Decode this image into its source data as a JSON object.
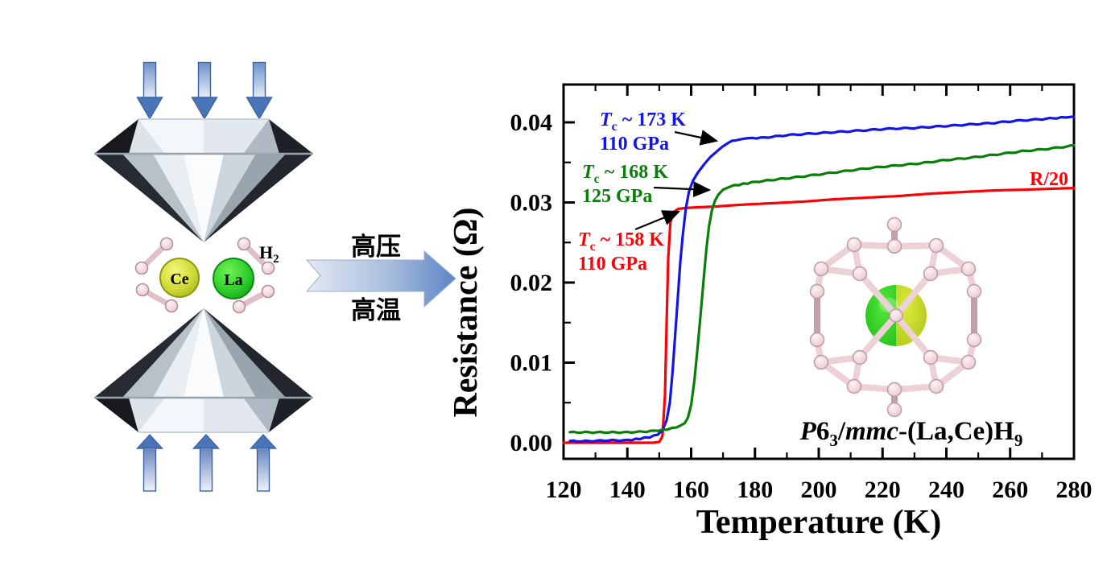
{
  "left_panel": {
    "ce_atom_label": "Ce",
    "la_atom_label": "La",
    "h2_label": {
      "base": "H",
      "sub": "2"
    }
  },
  "process_arrow": {
    "top_label": "高压",
    "bottom_label": "高温"
  },
  "chart_data": {
    "type": "line",
    "title": "",
    "xlabel": "Temperature (K)",
    "ylabel": "Resistance (Ω)",
    "xlim": [
      120,
      280
    ],
    "ylim": [
      -0.002,
      0.0447
    ],
    "grid": false,
    "legend_position": "none",
    "x_major_ticks": [
      120,
      140,
      160,
      180,
      200,
      220,
      240,
      260,
      280
    ],
    "x_tick_labels": [
      "120",
      "140",
      "160",
      "180",
      "200",
      "220",
      "240",
      "260",
      "280"
    ],
    "x_minor_ticks": [
      130,
      150,
      170,
      190,
      210,
      230,
      250,
      270
    ],
    "y_major_ticks": [
      0,
      0.01,
      0.02,
      0.03,
      0.04
    ],
    "y_tick_labels": [
      "0.00",
      "0.01",
      "0.02",
      "0.03",
      "0.04"
    ],
    "y_minor_ticks": [
      0.005,
      0.015,
      0.025,
      0.035
    ],
    "series": [
      {
        "name": "110 GPa (R/20)",
        "tc": "158 K",
        "pressure": "110 GPa",
        "scale_note": "R/20",
        "color": "#fb0007",
        "noise": false,
        "points": [
          [
            120,
            0.0
          ],
          [
            126,
            0.0
          ],
          [
            132,
            0.0
          ],
          [
            138,
            0.0
          ],
          [
            144,
            0.0
          ],
          [
            148,
            0.0
          ],
          [
            150,
            0.0001
          ],
          [
            151,
            0.0008
          ],
          [
            151.8,
            0.006
          ],
          [
            152.3,
            0.015
          ],
          [
            152.8,
            0.023
          ],
          [
            153.5,
            0.0275
          ],
          [
            154.5,
            0.0288
          ],
          [
            156,
            0.0292
          ],
          [
            158,
            0.0293
          ],
          [
            162,
            0.0294
          ],
          [
            168,
            0.0295
          ],
          [
            175,
            0.0297
          ],
          [
            185,
            0.0299
          ],
          [
            195,
            0.0301
          ],
          [
            205,
            0.0304
          ],
          [
            215,
            0.0306
          ],
          [
            225,
            0.0308
          ],
          [
            235,
            0.0311
          ],
          [
            245,
            0.0313
          ],
          [
            255,
            0.0315
          ],
          [
            265,
            0.0316
          ],
          [
            272,
            0.0317
          ],
          [
            280,
            0.0318
          ]
        ]
      },
      {
        "name": "110 GPa",
        "tc": "173 K",
        "pressure": "110 GPa",
        "color": "#1414e6",
        "noise": true,
        "points": [
          [
            122,
            0.0002
          ],
          [
            128,
            0.0002
          ],
          [
            134,
            0.0003
          ],
          [
            140,
            0.0003
          ],
          [
            144,
            0.0005
          ],
          [
            147,
            0.0007
          ],
          [
            149.5,
            0.001
          ],
          [
            151,
            0.0015
          ],
          [
            152.3,
            0.0028
          ],
          [
            153.3,
            0.005
          ],
          [
            154.2,
            0.009
          ],
          [
            155,
            0.0135
          ],
          [
            155.8,
            0.018
          ],
          [
            156.6,
            0.0225
          ],
          [
            157.4,
            0.026
          ],
          [
            158.3,
            0.0292
          ],
          [
            159.3,
            0.0313
          ],
          [
            160.5,
            0.0326
          ],
          [
            162,
            0.0337
          ],
          [
            164,
            0.0347
          ],
          [
            166,
            0.0356
          ],
          [
            168,
            0.0363
          ],
          [
            169.8,
            0.0369
          ],
          [
            171.3,
            0.0374
          ],
          [
            172.8,
            0.0377
          ],
          [
            175,
            0.0379
          ],
          [
            178,
            0.038
          ],
          [
            183,
            0.0381
          ],
          [
            190,
            0.0384
          ],
          [
            198,
            0.0386
          ],
          [
            206,
            0.0388
          ],
          [
            214,
            0.039
          ],
          [
            222,
            0.0392
          ],
          [
            230,
            0.0393
          ],
          [
            238,
            0.0395
          ],
          [
            246,
            0.0397
          ],
          [
            254,
            0.0399
          ],
          [
            262,
            0.0402
          ],
          [
            270,
            0.0404
          ],
          [
            276,
            0.0406
          ],
          [
            280,
            0.0407
          ]
        ]
      },
      {
        "name": "125 GPa",
        "tc": "168 K",
        "pressure": "125 GPa",
        "color": "#0a7d0a",
        "noise": true,
        "points": [
          [
            122,
            0.0013
          ],
          [
            128,
            0.0013
          ],
          [
            134,
            0.0013
          ],
          [
            140,
            0.0013
          ],
          [
            146,
            0.0014
          ],
          [
            151,
            0.0016
          ],
          [
            154,
            0.0018
          ],
          [
            156.5,
            0.0021
          ],
          [
            158,
            0.0025
          ],
          [
            159,
            0.0032
          ],
          [
            160,
            0.0048
          ],
          [
            161,
            0.0078
          ],
          [
            162,
            0.0118
          ],
          [
            163,
            0.0162
          ],
          [
            164,
            0.0208
          ],
          [
            164.8,
            0.0243
          ],
          [
            165.6,
            0.0271
          ],
          [
            166.5,
            0.0291
          ],
          [
            167.5,
            0.0303
          ],
          [
            168.5,
            0.031
          ],
          [
            170,
            0.0316
          ],
          [
            172,
            0.032
          ],
          [
            175,
            0.0322
          ],
          [
            179,
            0.0325
          ],
          [
            185,
            0.0328
          ],
          [
            192,
            0.0331
          ],
          [
            200,
            0.0335
          ],
          [
            208,
            0.0339
          ],
          [
            216,
            0.0343
          ],
          [
            224,
            0.0346
          ],
          [
            232,
            0.0349
          ],
          [
            240,
            0.0353
          ],
          [
            248,
            0.0356
          ],
          [
            256,
            0.036
          ],
          [
            264,
            0.0364
          ],
          [
            272,
            0.0367
          ],
          [
            280,
            0.0371
          ]
        ]
      }
    ],
    "annotations": {
      "blue": {
        "sym": "T",
        "sub": "c",
        "rest": " ~ 173 K",
        "line2": "110 GPa",
        "color": "#1414e6"
      },
      "green": {
        "sym": "T",
        "sub": "c",
        "rest": " ~ 168 K",
        "line2": "125 GPa",
        "color": "#0a7d0a"
      },
      "red": {
        "sym": "T",
        "sub": "c",
        "rest": " ~ 158 K",
        "line2": "110 GPa",
        "color": "#fb0007"
      },
      "r20_label": "R/20"
    }
  },
  "inset": {
    "formula": {
      "p": "P",
      "six": "6",
      "sub_three": "3",
      "slash": "/",
      "mmc": "mmc",
      "tail": "-(La,Ce)H",
      "sub_nine": "9"
    }
  }
}
